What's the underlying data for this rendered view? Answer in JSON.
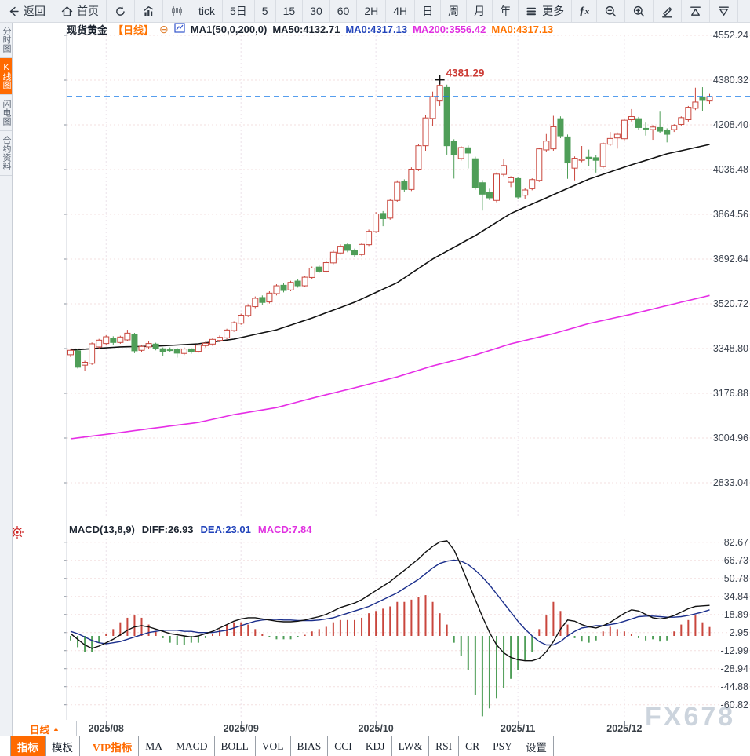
{
  "top_toolbar": {
    "items": [
      {
        "id": "back",
        "label": "返回",
        "icon": "back-arrow"
      },
      {
        "id": "home",
        "label": "首页",
        "icon": "home"
      },
      {
        "id": "refresh",
        "icon": "refresh"
      },
      {
        "id": "area-chart",
        "icon": "area-chart"
      },
      {
        "id": "candle-chart",
        "icon": "candlestick"
      },
      {
        "id": "tick",
        "label": "tick"
      },
      {
        "id": "period-5d",
        "label": "5日"
      },
      {
        "id": "period-5",
        "label": "5"
      },
      {
        "id": "period-15",
        "label": "15"
      },
      {
        "id": "period-30",
        "label": "30"
      },
      {
        "id": "period-60",
        "label": "60"
      },
      {
        "id": "period-2h",
        "label": "2H"
      },
      {
        "id": "period-4h",
        "label": "4H"
      },
      {
        "id": "period-day",
        "label": "日"
      },
      {
        "id": "period-week",
        "label": "周"
      },
      {
        "id": "period-month",
        "label": "月"
      },
      {
        "id": "period-year",
        "label": "年"
      },
      {
        "id": "more",
        "label": "更多",
        "icon": "menu"
      },
      {
        "id": "formula",
        "icon": "fx"
      },
      {
        "id": "zoom-out",
        "icon": "zoom-out"
      },
      {
        "id": "zoom-in",
        "icon": "zoom-in"
      },
      {
        "id": "draw",
        "icon": "pencil"
      },
      {
        "id": "expand-up",
        "icon": "triangle-up"
      },
      {
        "id": "expand-down",
        "icon": "triangle-down"
      }
    ]
  },
  "sidebar": {
    "items": [
      {
        "label": "分时图",
        "active": false
      },
      {
        "label": "K线图",
        "active": true
      },
      {
        "label": "闪电图",
        "active": false
      },
      {
        "label": "合约资料",
        "active": false
      }
    ]
  },
  "chart_header": {
    "symbol": "现货黄金",
    "period_tag": "【日线】",
    "ma_formula": "MA1(50,0,200,0)",
    "ma50": "MA50:4132.71",
    "ma0_blue": "MA0:4317.13",
    "ma200": "MA200:3556.42",
    "ma0_orange": "MA0:4317.13"
  },
  "macd_header": {
    "formula": "MACD(13,8,9)",
    "diff": "DIFF:26.93",
    "dea": "DEA:23.01",
    "macd": "MACD:7.84"
  },
  "bottom_bar": {
    "period_label": "日线",
    "period_arrow": "▲",
    "tabs": [
      {
        "label": "指标",
        "state": "active"
      },
      {
        "label": "模板",
        "state": "normal"
      },
      {
        "label": "VIP指标",
        "state": "vip",
        "gap_before": true
      },
      {
        "label": "MA",
        "state": "normal"
      },
      {
        "label": "MACD",
        "state": "normal"
      },
      {
        "label": "BOLL",
        "state": "normal"
      },
      {
        "label": "VOL",
        "state": "normal"
      },
      {
        "label": "BIAS",
        "state": "normal"
      },
      {
        "label": "CCI",
        "state": "normal"
      },
      {
        "label": "KDJ",
        "state": "normal"
      },
      {
        "label": "LW&",
        "state": "normal"
      },
      {
        "label": "RSI",
        "state": "normal"
      },
      {
        "label": "CR",
        "state": "normal"
      },
      {
        "label": "PSY",
        "state": "normal"
      },
      {
        "label": "设置",
        "state": "normal"
      }
    ]
  },
  "watermark": "FX678",
  "chart_data": {
    "type": "candlestick",
    "title": "现货黄金 日线",
    "price_axis": [
      "4552.24",
      "4380.32",
      "4208.40",
      "4036.48",
      "3864.56",
      "3692.64",
      "3520.72",
      "3348.80",
      "3176.88",
      "3004.96",
      "2833.04"
    ],
    "macd_axis": [
      "82.67",
      "66.73",
      "50.78",
      "34.84",
      "18.89",
      "2.95",
      "-12.99",
      "-28.94",
      "-44.88",
      "-60.82"
    ],
    "x_ticks": [
      {
        "index": 5,
        "label": "2025/08"
      },
      {
        "index": 24,
        "label": "2025/09"
      },
      {
        "index": 43,
        "label": "2025/10"
      },
      {
        "index": 63,
        "label": "2025/11"
      },
      {
        "index": 78,
        "label": "2025/12"
      }
    ],
    "current_price": 4317.13,
    "peak_label": "4381.29",
    "peak_index": 52,
    "colors": {
      "up": "#c9463d",
      "down": "#4f9e58",
      "ma50": "#111111",
      "ma200": "#e62ee6",
      "diff": "#111111",
      "dea": "#1b2f8c",
      "price_line": "#1f7ee8",
      "annotation": "#cc3b35",
      "accent": "#ff6a00"
    },
    "candles": [
      [
        3325,
        3348,
        3316,
        3342
      ],
      [
        3340,
        3346,
        3272,
        3277
      ],
      [
        3285,
        3302,
        3262,
        3296
      ],
      [
        3292,
        3372,
        3286,
        3367
      ],
      [
        3355,
        3386,
        3348,
        3381
      ],
      [
        3368,
        3400,
        3362,
        3394
      ],
      [
        3388,
        3396,
        3364,
        3372
      ],
      [
        3372,
        3398,
        3367,
        3393
      ],
      [
        3382,
        3421,
        3377,
        3408
      ],
      [
        3403,
        3409,
        3331,
        3340
      ],
      [
        3342,
        3363,
        3336,
        3357
      ],
      [
        3355,
        3379,
        3348,
        3368
      ],
      [
        3366,
        3371,
        3342,
        3348
      ],
      [
        3348,
        3353,
        3319,
        3338
      ],
      [
        3344,
        3353,
        3335,
        3342
      ],
      [
        3347,
        3351,
        3314,
        3331
      ],
      [
        3330,
        3353,
        3324,
        3347
      ],
      [
        3345,
        3351,
        3329,
        3336
      ],
      [
        3338,
        3367,
        3333,
        3362
      ],
      [
        3360,
        3375,
        3353,
        3369
      ],
      [
        3366,
        3389,
        3359,
        3384
      ],
      [
        3380,
        3399,
        3373,
        3392
      ],
      [
        3390,
        3425,
        3385,
        3420
      ],
      [
        3418,
        3453,
        3413,
        3448
      ],
      [
        3446,
        3483,
        3440,
        3477
      ],
      [
        3476,
        3519,
        3470,
        3512
      ],
      [
        3510,
        3549,
        3504,
        3542
      ],
      [
        3545,
        3553,
        3517,
        3526
      ],
      [
        3528,
        3569,
        3522,
        3562
      ],
      [
        3560,
        3596,
        3553,
        3590
      ],
      [
        3592,
        3599,
        3565,
        3572
      ],
      [
        3574,
        3609,
        3569,
        3603
      ],
      [
        3608,
        3616,
        3583,
        3590
      ],
      [
        3590,
        3629,
        3585,
        3623
      ],
      [
        3622,
        3664,
        3617,
        3658
      ],
      [
        3662,
        3669,
        3639,
        3646
      ],
      [
        3646,
        3685,
        3641,
        3679
      ],
      [
        3678,
        3726,
        3673,
        3719
      ],
      [
        3716,
        3749,
        3710,
        3742
      ],
      [
        3748,
        3756,
        3719,
        3726
      ],
      [
        3726,
        3733,
        3701,
        3709
      ],
      [
        3710,
        3755,
        3704,
        3749
      ],
      [
        3748,
        3806,
        3743,
        3799
      ],
      [
        3798,
        3873,
        3793,
        3866
      ],
      [
        3868,
        3877,
        3819,
        3848
      ],
      [
        3850,
        3925,
        3844,
        3918
      ],
      [
        3918,
        3995,
        3913,
        3988
      ],
      [
        3990,
        3999,
        3951,
        3960
      ],
      [
        3960,
        4045,
        3954,
        4038
      ],
      [
        4038,
        4136,
        4031,
        4128
      ],
      [
        4128,
        4246,
        4109,
        4235
      ],
      [
        4233,
        4336,
        4204,
        4317
      ],
      [
        4300,
        4381.29,
        4281,
        4360
      ],
      [
        4352,
        4363,
        4094,
        4128
      ],
      [
        4145,
        4153,
        4002,
        4094
      ],
      [
        4079,
        4127,
        4071,
        4121
      ],
      [
        4120,
        4129,
        4041,
        4100
      ],
      [
        4078,
        4086,
        3959,
        3966
      ],
      [
        3986,
        3996,
        3879,
        3942
      ],
      [
        3948,
        3963,
        3919,
        3928
      ],
      [
        3918,
        4025,
        3911,
        4019
      ],
      [
        4018,
        4077,
        4011,
        4052
      ],
      [
        3988,
        4011,
        3969,
        4005
      ],
      [
        4002,
        4009,
        3924,
        3931
      ],
      [
        3938,
        3965,
        3925,
        3958
      ],
      [
        3963,
        4003,
        3957,
        3998
      ],
      [
        3995,
        4121,
        3989,
        4116
      ],
      [
        4112,
        4173,
        4105,
        4146
      ],
      [
        4116,
        4243,
        4109,
        4201
      ],
      [
        4232,
        4241,
        4157,
        4166
      ],
      [
        4162,
        4171,
        4001,
        4062
      ],
      [
        4042,
        4087,
        3995,
        4080
      ],
      [
        4072,
        4127,
        4065,
        4076
      ],
      [
        4084,
        4113,
        4051,
        4080
      ],
      [
        4082,
        4091,
        4025,
        4072
      ],
      [
        4048,
        4141,
        4041,
        4136
      ],
      [
        4134,
        4181,
        4127,
        4156
      ],
      [
        4158,
        4179,
        4117,
        4172
      ],
      [
        4155,
        4231,
        4149,
        4226
      ],
      [
        4228,
        4269,
        4221,
        4240
      ],
      [
        4232,
        4239,
        4189,
        4198
      ],
      [
        4195,
        4217,
        4167,
        4192
      ],
      [
        4190,
        4207,
        4151,
        4200
      ],
      [
        4198,
        4259,
        4177,
        4184
      ],
      [
        4188,
        4195,
        4141,
        4172
      ],
      [
        4190,
        4211,
        4181,
        4206
      ],
      [
        4210,
        4241,
        4203,
        4236
      ],
      [
        4228,
        4281,
        4221,
        4276
      ],
      [
        4272,
        4351,
        4265,
        4296
      ],
      [
        4316,
        4353,
        4261,
        4302
      ],
      [
        4300,
        4327,
        4289,
        4317.13
      ]
    ],
    "ma50_keypoints": [
      [
        0,
        3343
      ],
      [
        7,
        3355
      ],
      [
        12,
        3358
      ],
      [
        18,
        3367
      ],
      [
        23,
        3385
      ],
      [
        29,
        3421
      ],
      [
        34,
        3466
      ],
      [
        40,
        3527
      ],
      [
        46,
        3602
      ],
      [
        51,
        3693
      ],
      [
        57,
        3783
      ],
      [
        62,
        3868
      ],
      [
        68,
        3940
      ],
      [
        73,
        4000
      ],
      [
        79,
        4055
      ],
      [
        84,
        4097
      ],
      [
        90,
        4133
      ]
    ],
    "ma200_keypoints": [
      [
        0,
        3002
      ],
      [
        7,
        3026
      ],
      [
        12,
        3044
      ],
      [
        18,
        3065
      ],
      [
        23,
        3095
      ],
      [
        29,
        3122
      ],
      [
        34,
        3158
      ],
      [
        40,
        3198
      ],
      [
        46,
        3240
      ],
      [
        51,
        3282
      ],
      [
        57,
        3324
      ],
      [
        62,
        3367
      ],
      [
        68,
        3406
      ],
      [
        73,
        3445
      ],
      [
        79,
        3481
      ],
      [
        84,
        3514
      ],
      [
        90,
        3553
      ]
    ],
    "macd": {
      "hist": [
        -4,
        -10,
        -14,
        -14,
        -6,
        2,
        6,
        12,
        16,
        18,
        16,
        10,
        4,
        -2,
        -6,
        -8,
        -8,
        -6,
        -6,
        -2,
        2,
        6,
        10,
        12,
        12,
        10,
        6,
        2,
        -1,
        -3,
        -3,
        -3,
        -1,
        1,
        4,
        6,
        8,
        12,
        14,
        14,
        14,
        16,
        20,
        22,
        24,
        26,
        30,
        30,
        32,
        34,
        36,
        30,
        20,
        10,
        -6,
        -18,
        -30,
        -52,
        -71,
        -64,
        -55,
        -46,
        -38,
        -30,
        -22,
        -14,
        6,
        18,
        30,
        22,
        10,
        -2,
        -5,
        -6,
        -4,
        4,
        8,
        6,
        4,
        2,
        -2,
        -4,
        -3,
        -5,
        -4,
        4,
        10,
        14,
        18,
        12,
        7.84
      ],
      "diff": [
        2,
        -3,
        -8,
        -11,
        -9,
        -6,
        -3,
        1,
        5,
        8,
        9,
        8,
        6,
        4,
        2,
        1,
        0,
        -1,
        0,
        2,
        4,
        7,
        10,
        13,
        15,
        16,
        16,
        15,
        14,
        13,
        12.5,
        12.5,
        13,
        14,
        15.5,
        17,
        19,
        22,
        25,
        27,
        29,
        32,
        36,
        40,
        44,
        48,
        53,
        58,
        63,
        68,
        74,
        79,
        83,
        84,
        76,
        62,
        47,
        32,
        17,
        3,
        -8,
        -15,
        -19,
        -21,
        -22,
        -22,
        -20,
        -14,
        -5,
        6,
        14,
        13,
        10,
        8,
        7,
        9,
        12,
        16,
        20,
        23,
        22,
        19,
        16,
        15,
        16,
        18,
        21,
        24,
        26,
        26.5,
        26.93
      ],
      "dea": [
        4,
        2,
        -1,
        -4,
        -6,
        -7,
        -6,
        -5,
        -3,
        -1,
        1,
        3,
        4,
        5,
        5,
        5,
        4,
        4,
        3,
        3,
        3,
        4,
        5,
        7,
        9,
        11,
        13,
        14,
        14.5,
        14.5,
        14,
        14,
        13.5,
        13.5,
        13.5,
        14,
        15,
        16,
        18,
        20,
        22,
        24,
        26,
        29,
        32,
        35,
        38,
        42,
        46,
        50,
        55,
        60,
        64,
        66,
        67,
        66,
        63,
        58,
        52,
        45,
        37,
        29,
        21,
        13,
        6,
        0,
        -5,
        -8,
        -8,
        -5,
        0,
        4,
        7,
        8,
        9,
        9,
        10,
        11,
        13,
        15,
        17,
        17.5,
        17.5,
        17,
        16.5,
        16.5,
        17,
        18,
        19.5,
        21,
        23.01
      ]
    }
  }
}
